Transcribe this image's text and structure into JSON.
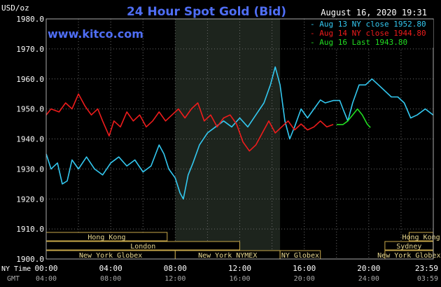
{
  "chart_data": {
    "type": "line",
    "title": "24 Hour Spot Gold (Bid)",
    "ylabel": "USD/oz",
    "timestamp": "August 16, 2020 19:31",
    "watermark": "www.kitco.com",
    "ylim": [
      1900,
      1980
    ],
    "xlim": [
      0,
      24
    ],
    "grid": true,
    "legend_position": "top-right",
    "y_ticks": [
      "1900.0",
      "1910.0",
      "1920.0",
      "1930.0",
      "1940.0",
      "1950.0",
      "1960.0",
      "1970.0",
      "1980.0"
    ],
    "x_ticks_ny": [
      "00:00",
      "04:00",
      "08:00",
      "12:00",
      "16:00",
      "20:00",
      "23:59"
    ],
    "x_ticks_gmt": [
      "04:00",
      "08:00",
      "12:00",
      "16:00",
      "20:00",
      "24:00",
      "03:59"
    ],
    "x_row_label_ny": "NY Time",
    "x_row_label_gmt": "GMT",
    "shaded_range": [
      8.0,
      14.5
    ],
    "series": [
      {
        "name": "Aug 13 NY close 1952.80",
        "color": "#33c8f0",
        "points": [
          [
            0.0,
            1935
          ],
          [
            0.3,
            1930
          ],
          [
            0.7,
            1932
          ],
          [
            1.0,
            1925
          ],
          [
            1.3,
            1926
          ],
          [
            1.6,
            1933
          ],
          [
            2.0,
            1930
          ],
          [
            2.5,
            1934
          ],
          [
            3.0,
            1930
          ],
          [
            3.5,
            1928
          ],
          [
            4.0,
            1932
          ],
          [
            4.5,
            1934
          ],
          [
            5.0,
            1931
          ],
          [
            5.5,
            1933
          ],
          [
            6.0,
            1929
          ],
          [
            6.5,
            1931
          ],
          [
            7.0,
            1938
          ],
          [
            7.3,
            1935
          ],
          [
            7.6,
            1930
          ],
          [
            8.0,
            1927
          ],
          [
            8.3,
            1922
          ],
          [
            8.5,
            1920
          ],
          [
            8.8,
            1928
          ],
          [
            9.1,
            1932
          ],
          [
            9.5,
            1938
          ],
          [
            10.0,
            1942
          ],
          [
            10.5,
            1944
          ],
          [
            11.0,
            1946
          ],
          [
            11.5,
            1944
          ],
          [
            12.0,
            1947
          ],
          [
            12.5,
            1944
          ],
          [
            13.0,
            1948
          ],
          [
            13.5,
            1952
          ],
          [
            13.9,
            1958
          ],
          [
            14.2,
            1964
          ],
          [
            14.5,
            1958
          ],
          [
            14.8,
            1946
          ],
          [
            15.1,
            1940
          ],
          [
            15.4,
            1944
          ],
          [
            15.8,
            1950
          ],
          [
            16.2,
            1947
          ],
          [
            16.6,
            1950
          ],
          [
            17.0,
            1953
          ],
          [
            17.3,
            1952
          ],
          [
            17.8,
            1952.8
          ],
          [
            18.2,
            1952.8
          ],
          [
            18.4,
            1950
          ],
          [
            18.7,
            1946
          ],
          [
            19.0,
            1952
          ],
          [
            19.4,
            1958
          ],
          [
            19.8,
            1958
          ],
          [
            20.2,
            1960
          ],
          [
            20.6,
            1958
          ],
          [
            21.0,
            1956
          ],
          [
            21.4,
            1954
          ],
          [
            21.8,
            1954
          ],
          [
            22.2,
            1952
          ],
          [
            22.6,
            1947
          ],
          [
            23.0,
            1948
          ],
          [
            23.5,
            1950
          ],
          [
            23.99,
            1948
          ]
        ]
      },
      {
        "name": "Aug 14 NY close 1944.80",
        "color": "#ee1c1c",
        "points": [
          [
            0.0,
            1948
          ],
          [
            0.3,
            1950
          ],
          [
            0.8,
            1949
          ],
          [
            1.2,
            1952
          ],
          [
            1.6,
            1950
          ],
          [
            2.0,
            1955
          ],
          [
            2.4,
            1951
          ],
          [
            2.8,
            1948
          ],
          [
            3.2,
            1950
          ],
          [
            3.5,
            1946
          ],
          [
            3.9,
            1941
          ],
          [
            4.2,
            1946
          ],
          [
            4.6,
            1944
          ],
          [
            5.0,
            1949
          ],
          [
            5.4,
            1946
          ],
          [
            5.8,
            1948
          ],
          [
            6.2,
            1944
          ],
          [
            6.6,
            1946
          ],
          [
            7.0,
            1949
          ],
          [
            7.4,
            1946
          ],
          [
            7.8,
            1948
          ],
          [
            8.2,
            1950
          ],
          [
            8.6,
            1947
          ],
          [
            9.0,
            1950
          ],
          [
            9.4,
            1952
          ],
          [
            9.8,
            1946
          ],
          [
            10.2,
            1948
          ],
          [
            10.6,
            1944
          ],
          [
            11.0,
            1947
          ],
          [
            11.4,
            1948
          ],
          [
            11.8,
            1945
          ],
          [
            12.2,
            1939
          ],
          [
            12.6,
            1936
          ],
          [
            13.0,
            1938
          ],
          [
            13.4,
            1942
          ],
          [
            13.8,
            1946
          ],
          [
            14.2,
            1942
          ],
          [
            14.6,
            1944
          ],
          [
            15.0,
            1946
          ],
          [
            15.4,
            1943
          ],
          [
            15.8,
            1945
          ],
          [
            16.2,
            1943
          ],
          [
            16.6,
            1944
          ],
          [
            17.0,
            1946
          ],
          [
            17.4,
            1944
          ],
          [
            17.8,
            1944.8
          ]
        ]
      },
      {
        "name": "Aug 16 Last 1943.80",
        "color": "#22dd22",
        "points": [
          [
            18.0,
            1944.8
          ],
          [
            18.4,
            1944.8
          ],
          [
            18.7,
            1946
          ],
          [
            19.0,
            1948
          ],
          [
            19.3,
            1950
          ],
          [
            19.6,
            1948
          ],
          [
            19.9,
            1945
          ],
          [
            20.1,
            1943.8
          ]
        ]
      }
    ]
  },
  "session_bars": [
    {
      "label": "Hong Kong",
      "start": 0.0,
      "end": 7.5,
      "row": 0
    },
    {
      "label": "Hong Kong",
      "start": 22.5,
      "end": 23.99,
      "row": 0
    },
    {
      "label": "London",
      "start": 0.0,
      "end": 12.0,
      "row": 1
    },
    {
      "label": "Sydney",
      "start": 21.0,
      "end": 23.99,
      "row": 1
    },
    {
      "label": "New York Globex",
      "start": 0.0,
      "end": 8.0,
      "row": 2
    },
    {
      "label": "New York NYMEX",
      "start": 8.0,
      "end": 14.5,
      "row": 2
    },
    {
      "label": "NY Globex",
      "start": 14.5,
      "end": 17.0,
      "row": 2
    },
    {
      "label": "New York Globex",
      "start": 21.0,
      "end": 23.99,
      "row": 2
    }
  ]
}
